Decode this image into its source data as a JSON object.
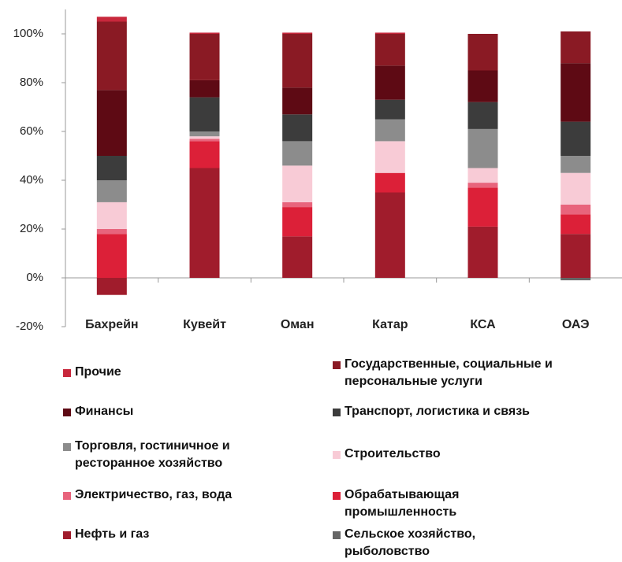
{
  "chart_data": {
    "type": "stacked_bar",
    "categories": [
      "Бахрейн",
      "Кувейт",
      "Оман",
      "Катар",
      "КСА",
      "ОАЭ"
    ],
    "ylim": [
      -20,
      110
    ],
    "yticks": [
      {
        "value": -20,
        "label": "-20%"
      },
      {
        "value": 0,
        "label": "0%"
      },
      {
        "value": 20,
        "label": "20%"
      },
      {
        "value": 40,
        "label": "40%"
      },
      {
        "value": 60,
        "label": "60%"
      },
      {
        "value": 80,
        "label": "80%"
      },
      {
        "value": 100,
        "label": "100%"
      }
    ],
    "legend_order": [
      8,
      7,
      6,
      5,
      4,
      3,
      2,
      1,
      0,
      9
    ],
    "series": [
      {
        "name": "Нефть и газ",
        "color": "#a01c2c",
        "values": [
          -7,
          45,
          17,
          35,
          21,
          18
        ]
      },
      {
        "name": "Обрабатывающая промышленность",
        "color": "#dc2038",
        "values": [
          18,
          11,
          12,
          8,
          16,
          8
        ]
      },
      {
        "name": "Электричество, газ, вода",
        "color": "#e8647c",
        "values": [
          2,
          1,
          2,
          0,
          2,
          4
        ]
      },
      {
        "name": "Строительство",
        "color": "#f8cbd6",
        "values": [
          11,
          1,
          15,
          13,
          6,
          13
        ]
      },
      {
        "name": "Торговля, гостиничное и ресторанное хозяйство",
        "color": "#8c8c8c",
        "values": [
          9,
          2,
          10,
          9,
          16,
          7
        ]
      },
      {
        "name": "Транспорт, логистика и связь",
        "color": "#3c3c3c",
        "values": [
          10,
          14,
          11,
          8,
          11,
          14
        ]
      },
      {
        "name": "Финансы",
        "color": "#5e0a14",
        "values": [
          27,
          7,
          11,
          14,
          13,
          24
        ]
      },
      {
        "name": "Государственные, социальные и персональные услуги",
        "color": "#8a1a24",
        "values": [
          28,
          19,
          22,
          13,
          15,
          13
        ]
      },
      {
        "name": "Прочие",
        "color": "#c8283c",
        "values": [
          2,
          0.5,
          0.5,
          0.5,
          0,
          0
        ]
      },
      {
        "name": "Сельское хозяйство, рыболовство",
        "color": "#666666",
        "values": [
          0,
          0,
          0,
          0,
          0,
          -1
        ]
      }
    ]
  }
}
